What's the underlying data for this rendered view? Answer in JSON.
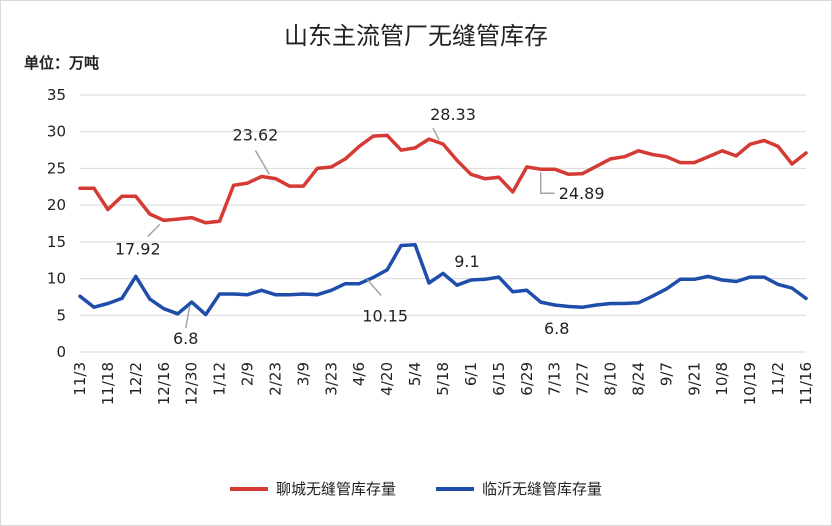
{
  "chart_data": {
    "type": "line",
    "title": "山东主流管厂无缝管库存",
    "ylabel": "单位：万吨",
    "ylim": [
      0,
      35
    ],
    "yticks": [
      0,
      5,
      10,
      15,
      20,
      25,
      30,
      35
    ],
    "grid": true,
    "legend": "bottom",
    "x_tick_labels": [
      "11/3",
      "11/18",
      "12/2",
      "12/16",
      "12/30",
      "1/12",
      "2/9",
      "2/23",
      "3/9",
      "3/23",
      "4/6",
      "4/20",
      "5/4",
      "5/18",
      "6/1",
      "6/15",
      "6/29",
      "7/13",
      "7/27",
      "8/10",
      "8/24",
      "9/7",
      "9/21",
      "10/8",
      "10/19",
      "11/2",
      "11/16"
    ],
    "series": [
      {
        "name": "聊城无缝管库存量",
        "color": "#d63a35",
        "values": [
          22.3,
          22.3,
          19.4,
          21.2,
          21.2,
          18.8,
          17.92,
          18.1,
          18.3,
          17.6,
          17.8,
          22.7,
          23.0,
          23.9,
          23.62,
          22.6,
          22.6,
          25.0,
          25.2,
          26.3,
          28.0,
          29.4,
          29.5,
          27.5,
          27.8,
          29.0,
          28.33,
          26.1,
          24.2,
          23.6,
          23.8,
          21.8,
          25.2,
          24.89,
          24.9,
          24.2,
          24.3,
          25.3,
          26.3,
          26.6,
          27.4,
          26.9,
          26.6,
          25.8,
          25.8,
          26.6,
          27.4,
          26.7,
          28.3,
          28.8,
          28.0,
          25.6,
          27.1
        ]
      },
      {
        "name": "临沂无缝管库存量",
        "color": "#1f4eaa",
        "values": [
          7.6,
          6.1,
          6.6,
          7.3,
          10.3,
          7.2,
          5.9,
          5.2,
          6.8,
          5.1,
          7.9,
          7.9,
          7.8,
          8.4,
          7.8,
          7.8,
          7.9,
          7.8,
          8.4,
          9.3,
          9.3,
          10.15,
          11.2,
          14.5,
          14.6,
          9.4,
          10.7,
          9.1,
          9.8,
          9.9,
          10.2,
          8.2,
          8.4,
          6.8,
          6.4,
          6.2,
          6.1,
          6.4,
          6.6,
          6.6,
          6.7,
          7.6,
          8.6,
          9.9,
          9.9,
          10.3,
          9.8,
          9.6,
          10.2,
          10.2,
          9.2,
          8.7,
          7.3
        ]
      }
    ],
    "annotations": [
      {
        "series": 0,
        "index": 14,
        "text": "23.62"
      },
      {
        "series": 0,
        "index": 6,
        "text": "17.92"
      },
      {
        "series": 0,
        "index": 26,
        "text": "28.33"
      },
      {
        "series": 0,
        "index": 33,
        "text": "24.89"
      },
      {
        "series": 1,
        "index": 8,
        "text": "6.8"
      },
      {
        "series": 1,
        "index": 21,
        "text": "10.15"
      },
      {
        "series": 1,
        "index": 27,
        "text": "9.1"
      },
      {
        "series": 1,
        "index": 33,
        "text": "6.8"
      }
    ]
  }
}
